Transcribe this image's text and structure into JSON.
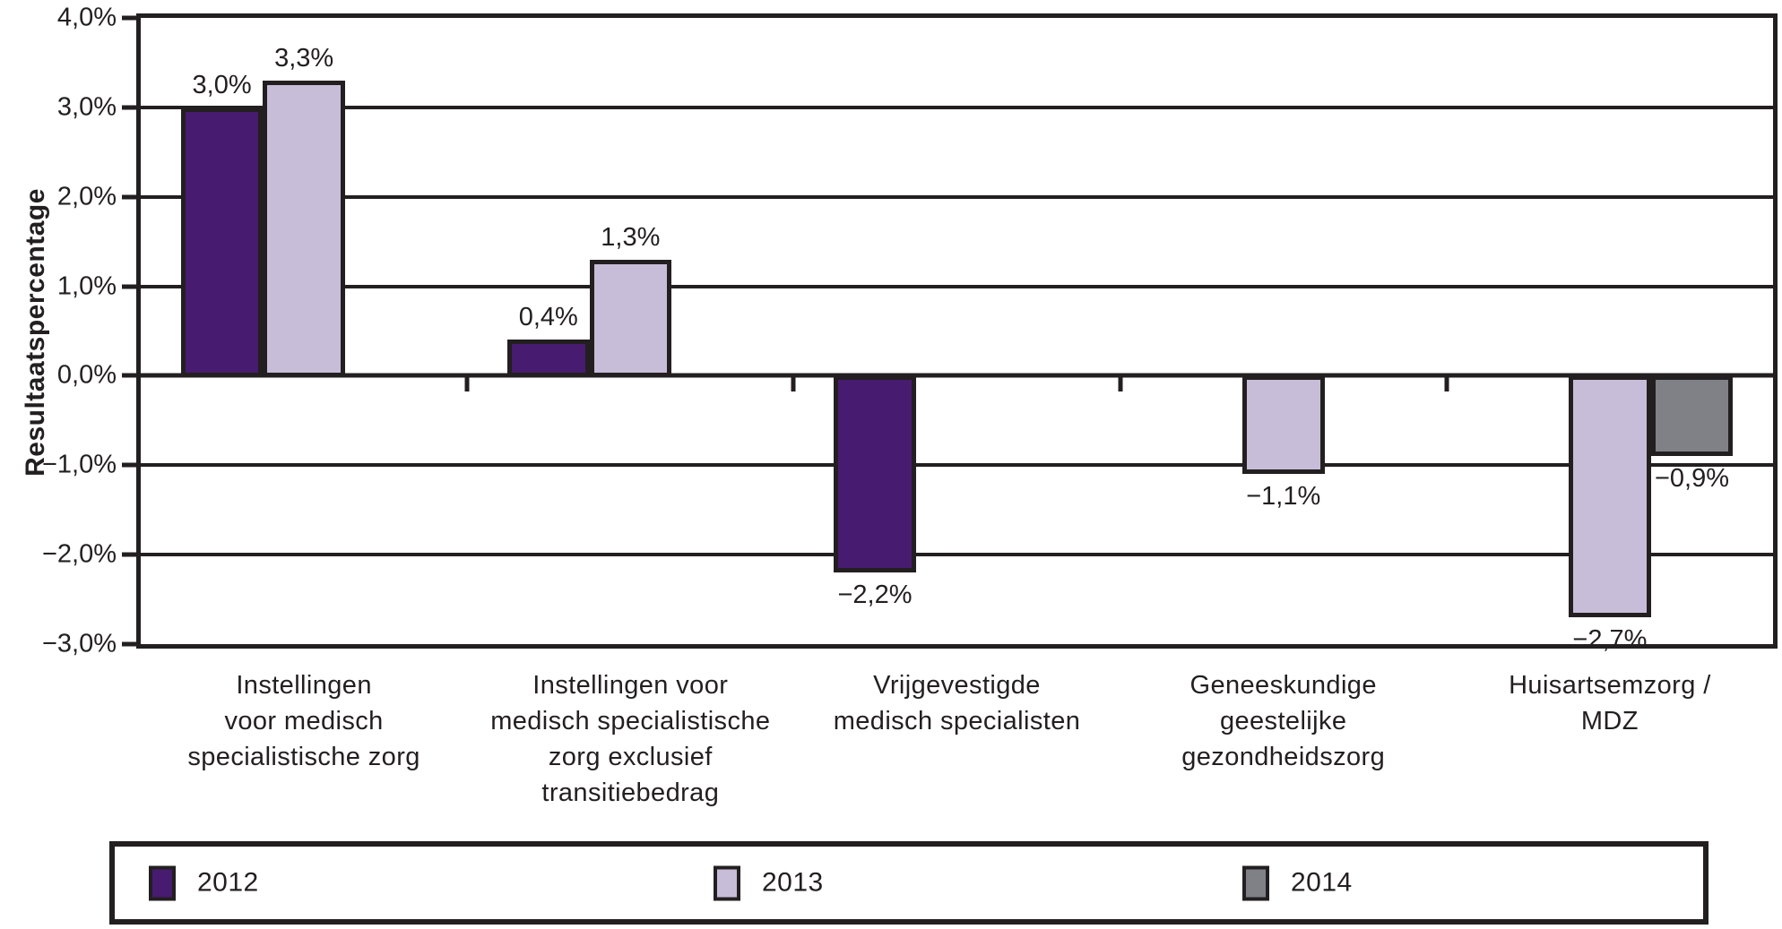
{
  "chart_data": {
    "type": "bar",
    "title": "",
    "xlabel": "",
    "ylabel": "Resultaatspercentage",
    "ylim": [
      -3,
      4
    ],
    "grid": true,
    "line_color": "#231F20",
    "yticks": [
      {
        "value": 4,
        "label": "4,0%"
      },
      {
        "value": 3,
        "label": "3,0%"
      },
      {
        "value": 2,
        "label": "2,0%"
      },
      {
        "value": 1,
        "label": "1,0%"
      },
      {
        "value": 0,
        "label": "0,0%"
      },
      {
        "value": -1,
        "label": "−1,0%"
      },
      {
        "value": -2,
        "label": "−2,0%"
      },
      {
        "value": -3,
        "label": "−3,0%"
      }
    ],
    "categories": [
      "Instellingen\nvoor medisch\nspecialistische zorg",
      "Instellingen voor\nmedisch specialistische\nzorg exclusief\ntransitiebedrag",
      "Vrijgevestigde\nmedisch specialisten",
      "Geneeskundige\ngeestelijke\ngezondheidszorg",
      "Huisartsemzorg /\nMDZ"
    ],
    "series": [
      {
        "name": "2012",
        "color": "#471B70",
        "values": [
          3.0,
          0.4,
          -2.2,
          null,
          null
        ],
        "value_labels": [
          "3,0%",
          "0,4%",
          "−2,2%",
          null,
          null
        ]
      },
      {
        "name": "2013",
        "color": "#C7BDD9",
        "values": [
          3.3,
          1.3,
          null,
          -1.1,
          -2.7
        ],
        "value_labels": [
          "3,3%",
          "1,3%",
          null,
          "−1,1%",
          "−2,7%"
        ]
      },
      {
        "name": "2014",
        "color": "#7F8187",
        "values": [
          null,
          null,
          null,
          null,
          -0.9
        ],
        "value_labels": [
          null,
          null,
          null,
          null,
          "−0,9%"
        ]
      }
    ],
    "legend": {
      "position": "bottom",
      "items": [
        {
          "label": "2012",
          "color": "#471B70"
        },
        {
          "label": "2013",
          "color": "#C7BDD9"
        },
        {
          "label": "2014",
          "color": "#7F8187"
        }
      ]
    }
  }
}
